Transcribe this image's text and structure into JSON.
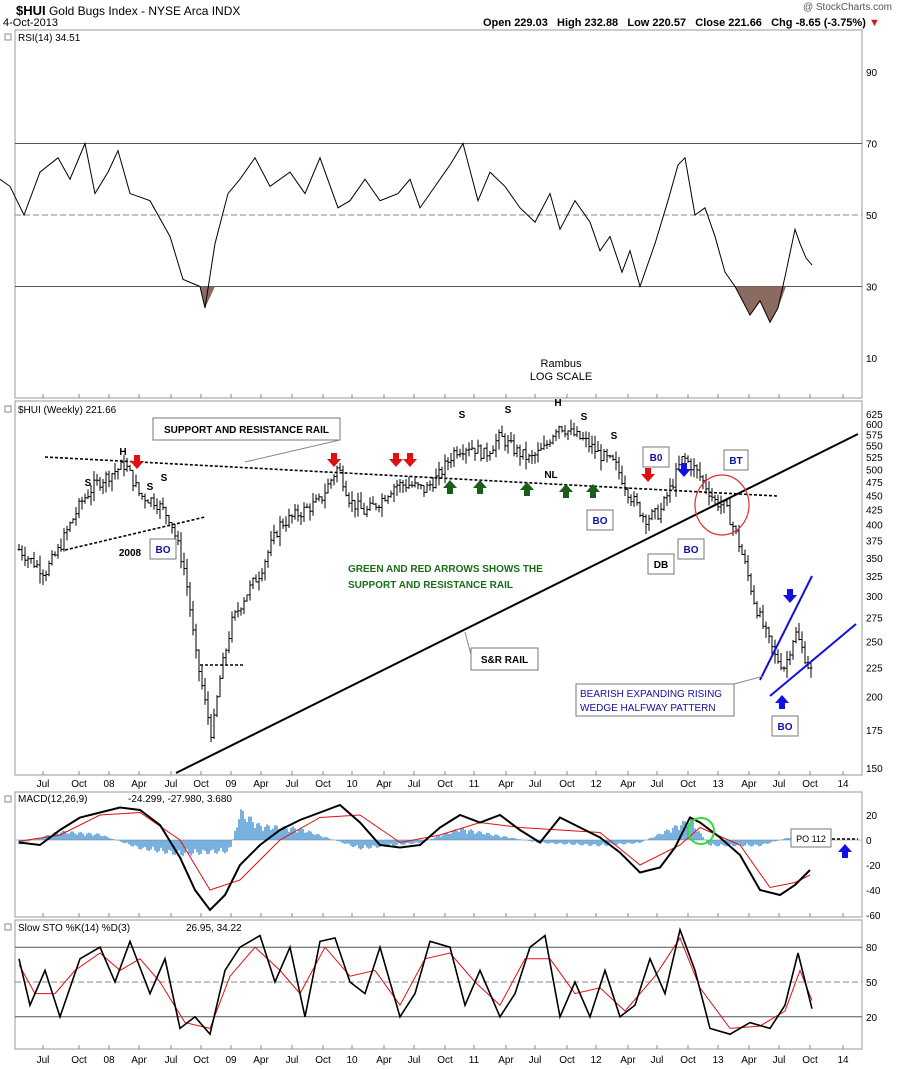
{
  "header": {
    "symbol": "$HUI",
    "name": "Gold Bugs Index - NYSE Arca  INDX",
    "date": "4-Oct-2013",
    "open_label": "Open",
    "open": "229.03",
    "high_label": "High",
    "high": "232.88",
    "low_label": "Low",
    "low": "220.57",
    "close_label": "Close",
    "close": "221.66",
    "chg_label": "Chg",
    "chg": "-8.65 (-3.75%)",
    "chg_arrow": "▼",
    "credit": "@ StockCharts.com"
  },
  "colors": {
    "up_arrow": "#1a5e1a",
    "down_arrow": "#e01010",
    "blue_arrow": "#1010e0",
    "macd_hist": "#3f8fcf",
    "rsi_fill": "#8b6a62",
    "signal_line": "#e01010",
    "wedge_line": "#1010e0",
    "circle_red": "#e03030",
    "circle_green": "#30e030"
  },
  "x_axis": {
    "tick_labels": [
      "Jul",
      "Oct",
      "08",
      "Apr",
      "Jul",
      "Oct",
      "09",
      "Apr",
      "Jul",
      "Oct",
      "10",
      "Apr",
      "Jul",
      "Oct",
      "11",
      "Apr",
      "Jul",
      "Oct",
      "12",
      "Apr",
      "Jul",
      "Oct",
      "13",
      "Apr",
      "Jul",
      "Oct",
      "14"
    ]
  },
  "chart_data": [
    {
      "type": "line",
      "panel": "RSI",
      "legend": "RSI(14) 34.51",
      "ylim": [
        0,
        100
      ],
      "y_ticks": [
        10,
        30,
        50,
        70,
        90
      ],
      "reference_lines": [
        30,
        50,
        70
      ],
      "annotation": [
        "Rambus",
        "LOG SCALE"
      ],
      "approx_points": [
        [
          0,
          60
        ],
        [
          10,
          58
        ],
        [
          24,
          50
        ],
        [
          40,
          62
        ],
        [
          58,
          66
        ],
        [
          70,
          60
        ],
        [
          85,
          70
        ],
        [
          95,
          56
        ],
        [
          108,
          62
        ],
        [
          118,
          68
        ],
        [
          130,
          56
        ],
        [
          150,
          54
        ],
        [
          170,
          44
        ],
        [
          183,
          32
        ],
        [
          200,
          30
        ],
        [
          205,
          24
        ],
        [
          215,
          42
        ],
        [
          228,
          56
        ],
        [
          240,
          60
        ],
        [
          255,
          66
        ],
        [
          270,
          58
        ],
        [
          290,
          62
        ],
        [
          305,
          56
        ],
        [
          320,
          66
        ],
        [
          338,
          52
        ],
        [
          350,
          54
        ],
        [
          365,
          60
        ],
        [
          380,
          54
        ],
        [
          398,
          56
        ],
        [
          410,
          60
        ],
        [
          420,
          52
        ],
        [
          435,
          58
        ],
        [
          450,
          64
        ],
        [
          463,
          70
        ],
        [
          478,
          54
        ],
        [
          490,
          62
        ],
        [
          505,
          58
        ],
        [
          520,
          52
        ],
        [
          535,
          48
        ],
        [
          550,
          56
        ],
        [
          560,
          46
        ],
        [
          575,
          54
        ],
        [
          590,
          48
        ],
        [
          600,
          40
        ],
        [
          610,
          44
        ],
        [
          622,
          34
        ],
        [
          630,
          40
        ],
        [
          640,
          30
        ],
        [
          655,
          42
        ],
        [
          668,
          54
        ],
        [
          678,
          64
        ],
        [
          685,
          66
        ],
        [
          695,
          50
        ],
        [
          705,
          52
        ],
        [
          715,
          44
        ],
        [
          725,
          34
        ],
        [
          735,
          30
        ],
        [
          750,
          22
        ],
        [
          760,
          26
        ],
        [
          770,
          20
        ],
        [
          778,
          24
        ],
        [
          786,
          34
        ],
        [
          795,
          46
        ],
        [
          800,
          42
        ],
        [
          806,
          38
        ],
        [
          812,
          36
        ]
      ]
    },
    {
      "type": "line",
      "panel": "Price",
      "legend": "$HUI (Weekly) 221.66",
      "scale": "log",
      "y_ticks": [
        150,
        175,
        200,
        225,
        250,
        275,
        300,
        325,
        350,
        375,
        400,
        425,
        450,
        475,
        500,
        525,
        550,
        575,
        600,
        625
      ],
      "series_note": "weekly OHLC bars, values approximate",
      "approx_closes": [
        [
          19,
          362
        ],
        [
          32,
          345
        ],
        [
          45,
          330
        ],
        [
          58,
          360
        ],
        [
          70,
          400
        ],
        [
          82,
          440
        ],
        [
          95,
          470
        ],
        [
          110,
          490
        ],
        [
          125,
          510
        ],
        [
          140,
          450
        ],
        [
          155,
          440
        ],
        [
          170,
          410
        ],
        [
          185,
          330
        ],
        [
          195,
          240
        ],
        [
          205,
          195
        ],
        [
          212,
          170
        ],
        [
          220,
          215
        ],
        [
          232,
          270
        ],
        [
          245,
          300
        ],
        [
          260,
          330
        ],
        [
          280,
          400
        ],
        [
          300,
          420
        ],
        [
          320,
          440
        ],
        [
          338,
          505
        ],
        [
          350,
          440
        ],
        [
          365,
          420
        ],
        [
          380,
          440
        ],
        [
          395,
          470
        ],
        [
          410,
          470
        ],
        [
          425,
          460
        ],
        [
          440,
          490
        ],
        [
          455,
          540
        ],
        [
          470,
          550
        ],
        [
          485,
          530
        ],
        [
          500,
          570
        ],
        [
          515,
          540
        ],
        [
          530,
          520
        ],
        [
          545,
          545
        ],
        [
          558,
          600
        ],
        [
          570,
          580
        ],
        [
          585,
          560
        ],
        [
          600,
          530
        ],
        [
          615,
          510
        ],
        [
          630,
          450
        ],
        [
          645,
          410
        ],
        [
          660,
          420
        ],
        [
          672,
          470
        ],
        [
          683,
          525
        ],
        [
          695,
          500
        ],
        [
          705,
          470
        ],
        [
          715,
          440
        ],
        [
          725,
          430
        ],
        [
          735,
          390
        ],
        [
          745,
          340
        ],
        [
          755,
          290
        ],
        [
          765,
          260
        ],
        [
          775,
          235
        ],
        [
          785,
          225
        ],
        [
          795,
          260
        ],
        [
          803,
          240
        ],
        [
          810,
          222
        ]
      ],
      "annotations": {
        "sr_rail_label": "SUPPORT AND RESISTANCE RAIL",
        "arrows_note_1": "GREEN  AND RED ARROWS SHOWS THE",
        "arrows_note_2": "SUPPORT AND RESISTANCE RAIL",
        "sr_rail_label2": "S&R RAIL",
        "wedge_1": "BEARISH EXPANDING RISING",
        "wedge_2": "WEDGE HALFWAY PATTERN",
        "year_2008": "2008",
        "bo": "BO",
        "b0": "B0",
        "bt": "BT",
        "db": "DB",
        "h": "H",
        "s": "S",
        "nl": "NL"
      }
    },
    {
      "type": "line",
      "panel": "MACD",
      "legend_name": "MACD(12,26,9)",
      "legend_values": "-24.299, -27.980, 3.680",
      "y_ticks": [
        20,
        0,
        -20,
        -40,
        -60
      ],
      "po_label": "PO 112",
      "approx_macd": [
        [
          19,
          -2
        ],
        [
          40,
          -4
        ],
        [
          60,
          8
        ],
        [
          80,
          18
        ],
        [
          100,
          22
        ],
        [
          120,
          26
        ],
        [
          140,
          24
        ],
        [
          160,
          12
        ],
        [
          180,
          -14
        ],
        [
          195,
          -40
        ],
        [
          210,
          -56
        ],
        [
          225,
          -44
        ],
        [
          240,
          -20
        ],
        [
          260,
          -4
        ],
        [
          280,
          8
        ],
        [
          300,
          16
        ],
        [
          320,
          22
        ],
        [
          340,
          28
        ],
        [
          360,
          14
        ],
        [
          380,
          -4
        ],
        [
          400,
          -6
        ],
        [
          420,
          -4
        ],
        [
          440,
          10
        ],
        [
          460,
          20
        ],
        [
          480,
          14
        ],
        [
          500,
          20
        ],
        [
          520,
          8
        ],
        [
          540,
          -2
        ],
        [
          560,
          18
        ],
        [
          580,
          10
        ],
        [
          600,
          2
        ],
        [
          620,
          -10
        ],
        [
          640,
          -26
        ],
        [
          660,
          -22
        ],
        [
          675,
          -6
        ],
        [
          690,
          18
        ],
        [
          700,
          14
        ],
        [
          720,
          2
        ],
        [
          740,
          -12
        ],
        [
          760,
          -40
        ],
        [
          780,
          -44
        ],
        [
          795,
          -36
        ],
        [
          810,
          -24
        ]
      ],
      "approx_signal": [
        [
          19,
          -1
        ],
        [
          60,
          4
        ],
        [
          100,
          20
        ],
        [
          140,
          22
        ],
        [
          180,
          0
        ],
        [
          210,
          -40
        ],
        [
          240,
          -32
        ],
        [
          280,
          0
        ],
        [
          320,
          18
        ],
        [
          360,
          20
        ],
        [
          400,
          -2
        ],
        [
          440,
          4
        ],
        [
          480,
          14
        ],
        [
          520,
          10
        ],
        [
          560,
          8
        ],
        [
          600,
          6
        ],
        [
          640,
          -20
        ],
        [
          680,
          -4
        ],
        [
          700,
          10
        ],
        [
          740,
          -4
        ],
        [
          770,
          -38
        ],
        [
          795,
          -34
        ],
        [
          810,
          -28
        ]
      ],
      "approx_hist": [
        [
          19,
          -3
        ],
        [
          60,
          6
        ],
        [
          100,
          4
        ],
        [
          140,
          -6
        ],
        [
          180,
          -10
        ],
        [
          230,
          -8
        ],
        [
          240,
          20
        ],
        [
          260,
          10
        ],
        [
          300,
          8
        ],
        [
          360,
          -6
        ],
        [
          420,
          -2
        ],
        [
          460,
          8
        ],
        [
          540,
          -2
        ],
        [
          600,
          -4
        ],
        [
          640,
          -2
        ],
        [
          690,
          14
        ],
        [
          710,
          -4
        ],
        [
          760,
          -4
        ],
        [
          800,
          4
        ]
      ]
    },
    {
      "type": "line",
      "panel": "Slow STO",
      "legend_name": "Slow STO %K(14) %D(3)",
      "legend_values": "26.95, 34.22",
      "ylim": [
        0,
        100
      ],
      "y_ticks": [
        20,
        50,
        80
      ],
      "approx_k": [
        [
          19,
          70
        ],
        [
          30,
          30
        ],
        [
          45,
          60
        ],
        [
          60,
          20
        ],
        [
          80,
          70
        ],
        [
          100,
          80
        ],
        [
          115,
          50
        ],
        [
          130,
          85
        ],
        [
          150,
          40
        ],
        [
          165,
          70
        ],
        [
          180,
          10
        ],
        [
          195,
          20
        ],
        [
          210,
          5
        ],
        [
          225,
          60
        ],
        [
          240,
          80
        ],
        [
          260,
          90
        ],
        [
          275,
          50
        ],
        [
          290,
          80
        ],
        [
          305,
          20
        ],
        [
          320,
          85
        ],
        [
          335,
          88
        ],
        [
          350,
          50
        ],
        [
          365,
          40
        ],
        [
          380,
          80
        ],
        [
          400,
          20
        ],
        [
          415,
          40
        ],
        [
          430,
          85
        ],
        [
          450,
          80
        ],
        [
          465,
          30
        ],
        [
          480,
          60
        ],
        [
          500,
          20
        ],
        [
          515,
          40
        ],
        [
          530,
          80
        ],
        [
          545,
          90
        ],
        [
          560,
          20
        ],
        [
          575,
          50
        ],
        [
          590,
          20
        ],
        [
          605,
          60
        ],
        [
          620,
          20
        ],
        [
          635,
          30
        ],
        [
          650,
          70
        ],
        [
          665,
          40
        ],
        [
          680,
          95
        ],
        [
          695,
          60
        ],
        [
          710,
          10
        ],
        [
          730,
          5
        ],
        [
          750,
          15
        ],
        [
          770,
          10
        ],
        [
          785,
          30
        ],
        [
          798,
          75
        ],
        [
          812,
          27
        ]
      ],
      "approx_d": [
        [
          19,
          65
        ],
        [
          35,
          40
        ],
        [
          55,
          40
        ],
        [
          75,
          60
        ],
        [
          100,
          75
        ],
        [
          120,
          60
        ],
        [
          140,
          70
        ],
        [
          160,
          50
        ],
        [
          185,
          15
        ],
        [
          210,
          10
        ],
        [
          230,
          55
        ],
        [
          255,
          80
        ],
        [
          280,
          60
        ],
        [
          300,
          40
        ],
        [
          325,
          80
        ],
        [
          350,
          55
        ],
        [
          375,
          60
        ],
        [
          400,
          30
        ],
        [
          425,
          70
        ],
        [
          450,
          75
        ],
        [
          475,
          50
        ],
        [
          500,
          30
        ],
        [
          525,
          70
        ],
        [
          550,
          70
        ],
        [
          575,
          40
        ],
        [
          600,
          45
        ],
        [
          625,
          25
        ],
        [
          655,
          55
        ],
        [
          680,
          88
        ],
        [
          700,
          45
        ],
        [
          730,
          10
        ],
        [
          760,
          12
        ],
        [
          785,
          25
        ],
        [
          800,
          60
        ],
        [
          812,
          34
        ]
      ]
    }
  ]
}
